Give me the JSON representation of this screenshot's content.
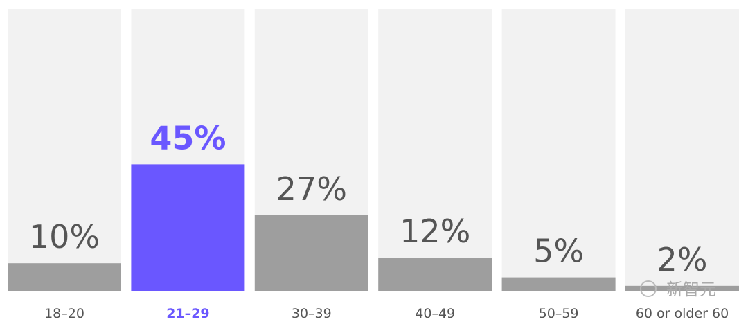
{
  "chart_data": {
    "type": "bar",
    "categories": [
      "18–20",
      "21–29",
      "30–39",
      "40–49",
      "50–59",
      "60 or older 60"
    ],
    "values": [
      10,
      45,
      27,
      12,
      5,
      2
    ],
    "value_labels": [
      "10%",
      "45%",
      "27%",
      "12%",
      "5%",
      "2%"
    ],
    "color": "#9e9e9e",
    "highlight_color": "#6a57ff",
    "highlight_index": 1,
    "track_color": "#f2f2f2",
    "ylim": [
      0,
      100
    ]
  },
  "watermark": "新智元"
}
